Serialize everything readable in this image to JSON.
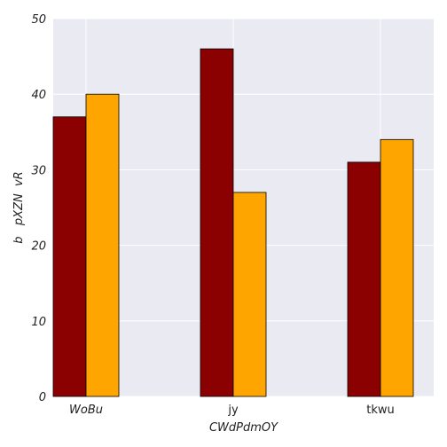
{
  "chart_data": {
    "type": "bar",
    "title": "",
    "xlabel": "CWdPdmOY",
    "ylabel": "b   pXZN  vR",
    "categories": [
      "WoBu",
      "jy",
      "tkwu"
    ],
    "series": [
      {
        "color": "#8b0000",
        "values": [
          37,
          46,
          31
        ]
      },
      {
        "color": "#ffa500",
        "values": [
          40,
          27,
          34
        ]
      }
    ],
    "ylim": [
      0,
      50
    ],
    "yticks": [
      0,
      10,
      20,
      30,
      40,
      50
    ],
    "grid": true,
    "legend": "none",
    "background": "#eaeaf2"
  }
}
